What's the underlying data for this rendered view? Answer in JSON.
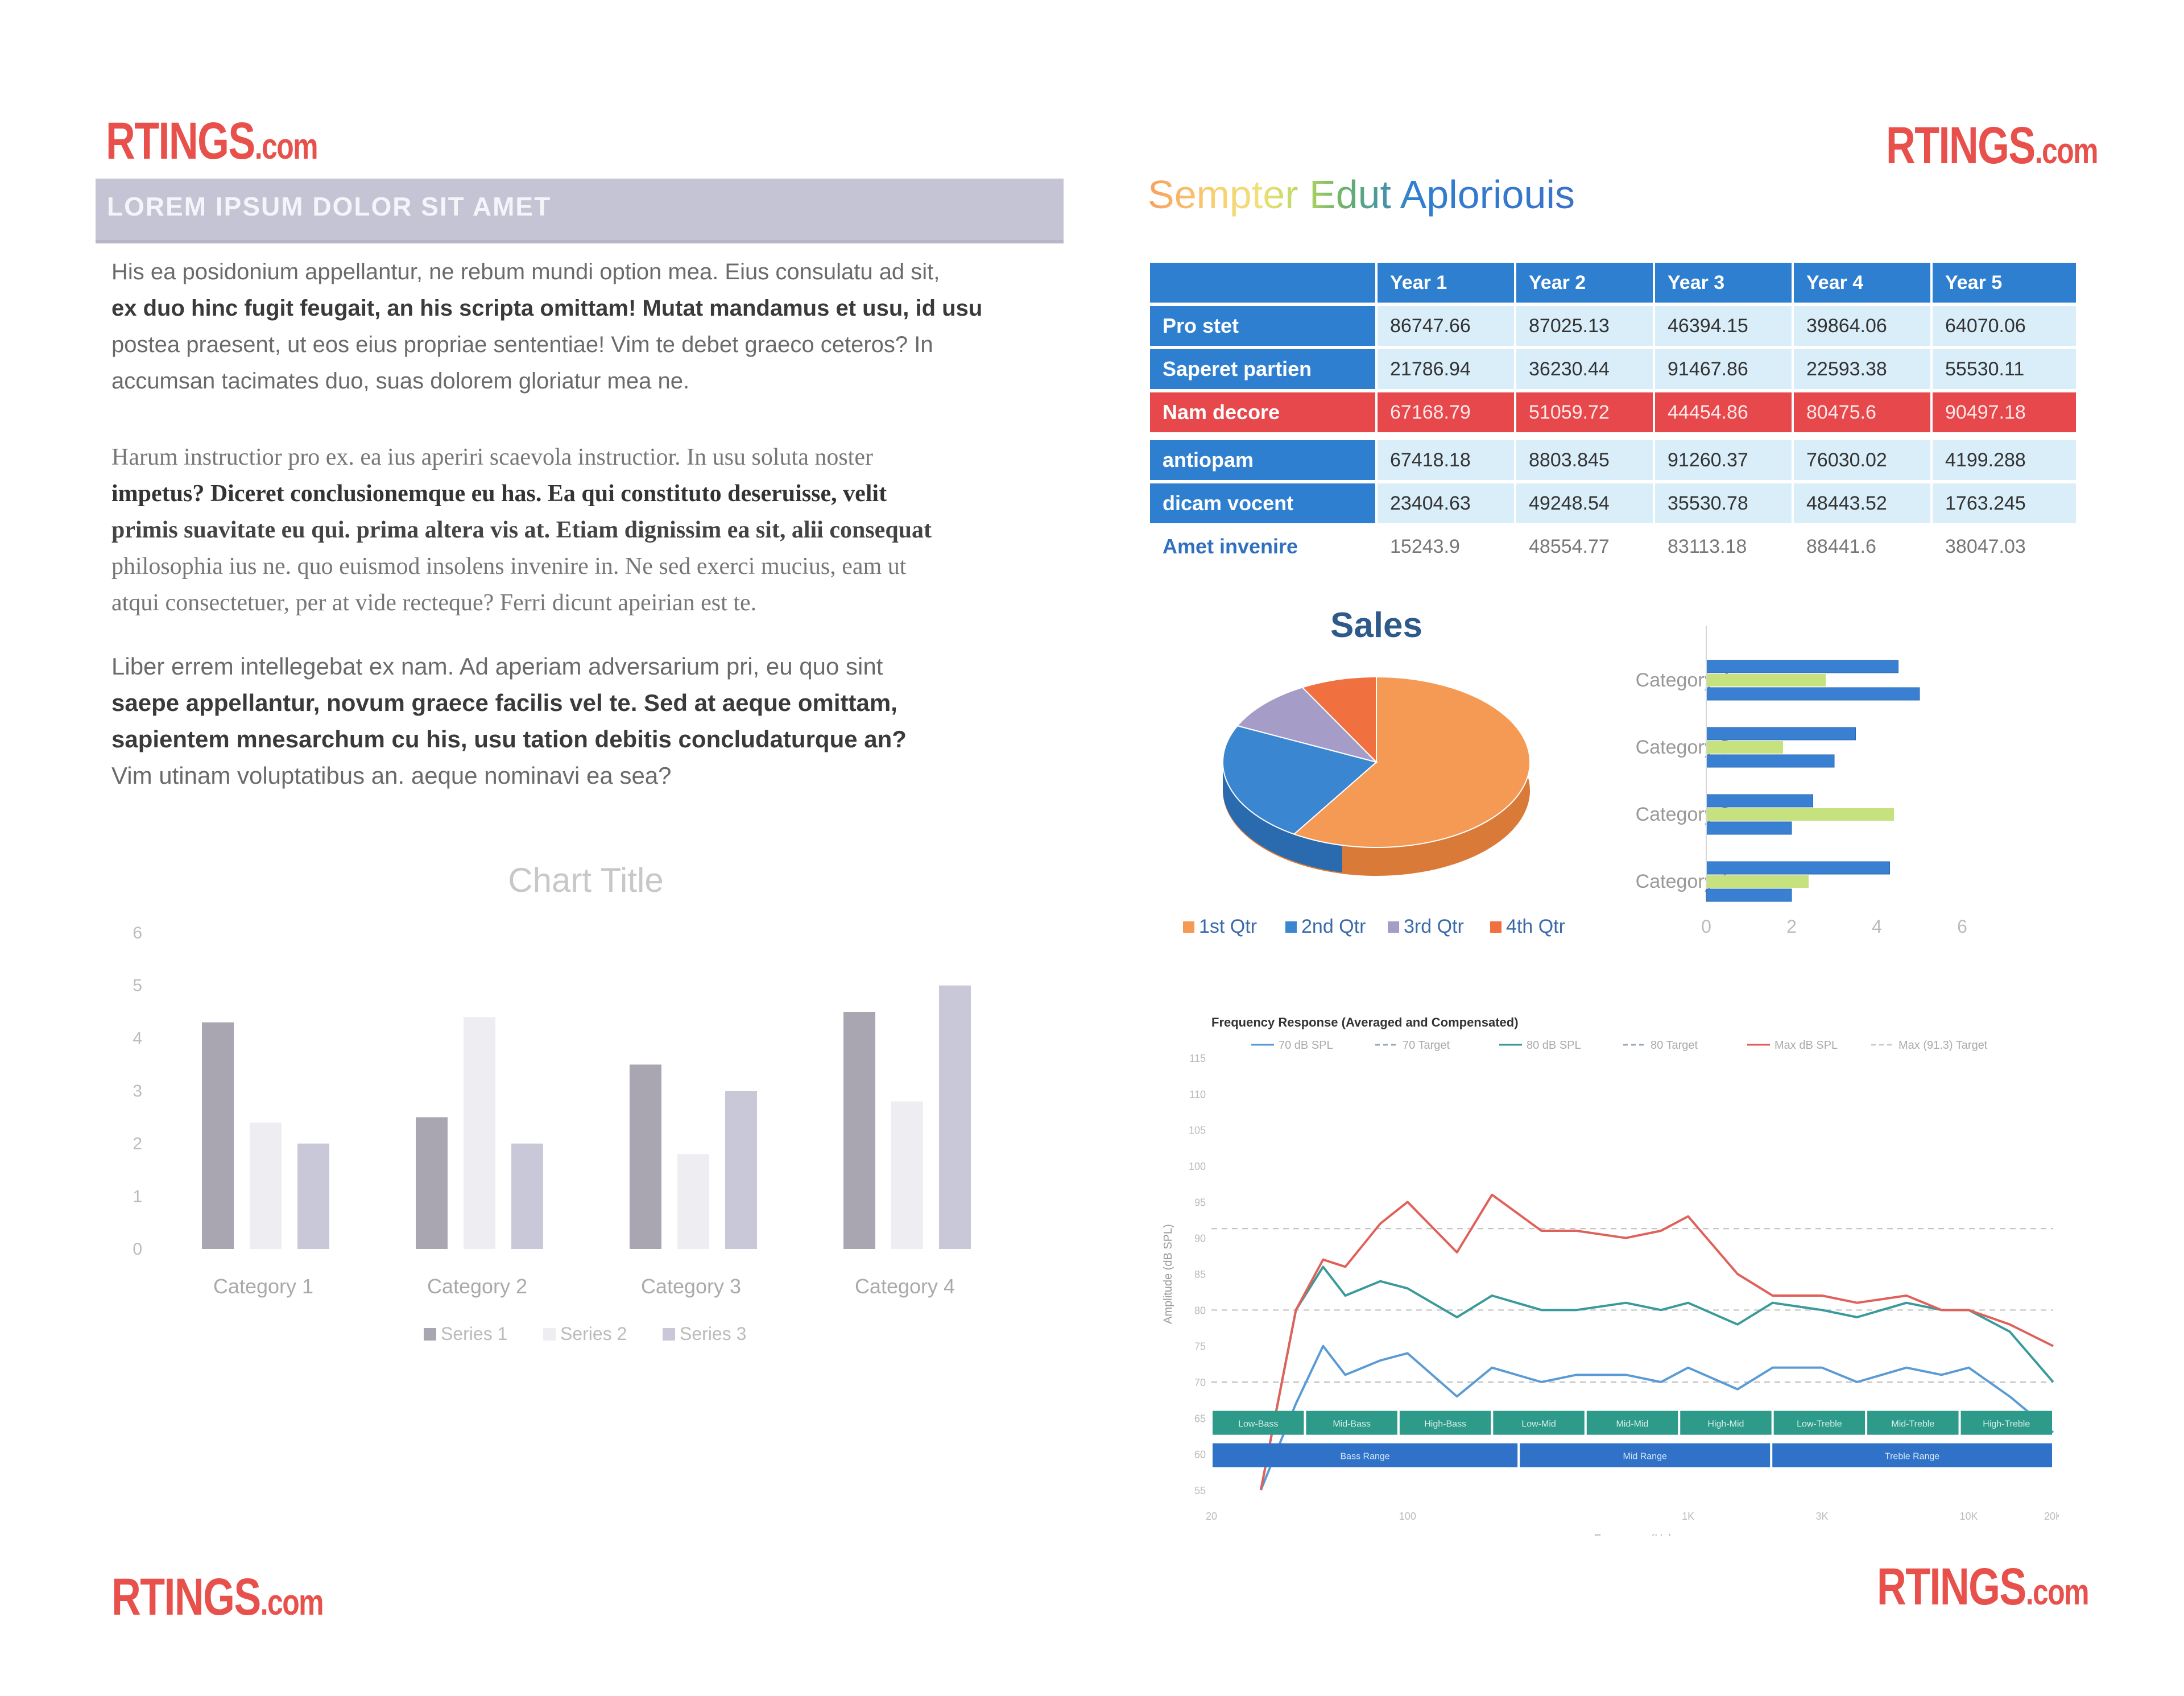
{
  "logos": {
    "top_left": {
      "main": "RTINGS",
      "suffix": ".com"
    },
    "top_right": {
      "main": "RTINGS",
      "suffix": ".com"
    },
    "bottom_left": {
      "main": "RTINGS",
      "suffix": ".com"
    },
    "bottom_right": {
      "main": "RTINGS",
      "suffix": ".com"
    }
  },
  "banner": "LOREM IPSUM DOLOR SIT AMET",
  "paragraphs": {
    "p1_lines": [
      "His ea posidonium appellantur, ne rebum mundi option mea. Eius consulatu ad sit,",
      "ex duo hinc fugit feugait, an his scripta omittam! Mutat mandamus et usu, id usu",
      "postea praesent, ut eos eius propriae sententiae! Vim te debet graeco ceteros? In",
      "accumsan tacimates duo, suas dolorem gloriatur mea ne."
    ],
    "p2_lines": [
      "Harum instructior pro ex. ea ius aperiri scaevola instructior. In usu soluta noster",
      "impetus? Diceret conclusionemque eu has. Ea qui constituto deseruisse, velit",
      "primis suavitate eu qui. prima altera vis at. Etiam dignissim ea sit, alii consequat",
      "philosophia ius ne. quo euismod insolens invenire in. Ne sed exerci mucius, eam ut",
      "atqui consectetuer, per at vide recteque? Ferri dicunt apeirian est te."
    ],
    "p3_lines": [
      "Liber errem intellegebat ex nam. Ad aperiam adversarium pri, eu quo sint",
      "saepe appellantur, novum graece facilis vel te. Sed at aeque omittam,",
      "sapientem mnesarchum cu his, usu tation debitis concludaturque an?",
      "Vim utinam voluptatibus an. aeque nominavi ea sea?"
    ]
  },
  "rainbow_title": "Sempter Edut Aploriouis",
  "table": {
    "headers": [
      "Year 1",
      "Year 2",
      "Year 3",
      "Year 4",
      "Year 5"
    ],
    "rows": [
      {
        "label": "Pro stet",
        "values": [
          "86747.66",
          "87025.13",
          "46394.15",
          "39864.06",
          "64070.06"
        ]
      },
      {
        "label": "Saperet partien",
        "values": [
          "21786.94",
          "36230.44",
          "91467.86",
          "22593.38",
          "55530.11"
        ]
      },
      {
        "label": "Nam decore",
        "values": [
          "67168.79",
          "51059.72",
          "44454.86",
          "80475.6",
          "90497.18"
        ]
      },
      {
        "label": "antiopam",
        "values": [
          "67418.18",
          "8803.845",
          "91260.37",
          "76030.02",
          "4199.288"
        ]
      },
      {
        "label": "dicam vocent",
        "values": [
          "23404.63",
          "49248.54",
          "35530.78",
          "48443.52",
          "1763.245"
        ]
      },
      {
        "label": "Amet invenire",
        "values": [
          "15243.9",
          "48554.77",
          "83113.18",
          "88441.6",
          "38047.03"
        ]
      }
    ]
  },
  "colors": {
    "logo": "#e8504c",
    "table_header": "#2f7fd0",
    "table_light": "#d9eef9",
    "table_red": "#e6484c",
    "pie_orange": "#f59a55",
    "pie_blue": "#3b86d1",
    "pie_lavender": "#a59cc8",
    "pie_red": "#f07040",
    "hbar_blue": "#3a80d2",
    "hbar_green": "#c5e27e"
  },
  "chart_data": [
    {
      "type": "bar",
      "title": "Chart Title",
      "categories": [
        "Category 1",
        "Category 2",
        "Category 3",
        "Category 4"
      ],
      "series": [
        {
          "name": "Series 1",
          "values": [
            4.3,
            2.5,
            3.5,
            4.5
          ]
        },
        {
          "name": "Series 2",
          "values": [
            2.4,
            4.4,
            1.8,
            2.8
          ]
        },
        {
          "name": "Series 3",
          "values": [
            2.0,
            2.0,
            3.0,
            5.0
          ]
        }
      ],
      "yticks": [
        "0",
        "1",
        "2",
        "3",
        "4",
        "5",
        "6"
      ],
      "ylim": [
        0,
        6
      ],
      "legend": "bottom",
      "colors": [
        "#a9a6b1",
        "#eeeef2",
        "#c9c8d8"
      ]
    },
    {
      "type": "pie",
      "title": "Sales",
      "labels": [
        "1st Qtr",
        "2nd Qtr",
        "3rd Qtr",
        "4th Qtr"
      ],
      "values": [
        59,
        23,
        10,
        8
      ],
      "legend": "bottom",
      "colors": [
        "#f59a55",
        "#3b86d1",
        "#a59cc8",
        "#f07040"
      ]
    },
    {
      "type": "bar",
      "orientation": "horizontal",
      "categories": [
        "Category 1",
        "Category 2",
        "Category 3",
        "Category 4"
      ],
      "series": [
        {
          "name": "",
          "values": [
            4.3,
            2.5,
            3.5,
            4.5
          ]
        },
        {
          "name": "",
          "values": [
            2.4,
            4.4,
            1.8,
            2.8
          ]
        },
        {
          "name": "",
          "values": [
            2.0,
            2.0,
            3.0,
            5.0
          ]
        }
      ],
      "xticks": [
        "0",
        "2",
        "4",
        "6"
      ],
      "xlim": [
        0,
        6
      ]
    },
    {
      "type": "line",
      "title": "Frequency Response (Averaged and Compensated)",
      "xlabel": "Frequency (Hz)",
      "ylabel": "Amplitude (dB SPL)",
      "x_scale": "log",
      "xticks": [
        "20",
        "100",
        "1K",
        "3K",
        "10K",
        "20K"
      ],
      "xtick_values": [
        20,
        100,
        1000,
        3000,
        10000,
        20000
      ],
      "yticks": [
        "55",
        "60",
        "65",
        "70",
        "75",
        "80",
        "85",
        "90",
        "95",
        "100",
        "105",
        "110",
        "115"
      ],
      "ylim": [
        55,
        115
      ],
      "legend_entries": [
        "70 dB SPL",
        "70 Target",
        "80 dB SPL",
        "80 Target",
        "Max dB SPL",
        "Max (91.3) Target"
      ],
      "series": [
        {
          "name": "70 dB SPL",
          "color": "#5b9bd5",
          "x": [
            30,
            40,
            50,
            60,
            80,
            100,
            150,
            200,
            300,
            400,
            600,
            800,
            1000,
            1500,
            2000,
            3000,
            4000,
            6000,
            8000,
            10000,
            14000,
            20000
          ],
          "y": [
            55,
            67,
            75,
            71,
            73,
            74,
            68,
            72,
            70,
            71,
            71,
            70,
            72,
            69,
            72,
            72,
            70,
            72,
            71,
            72,
            68,
            63
          ]
        },
        {
          "name": "80 dB SPL",
          "color": "#3a9a9a",
          "x": [
            30,
            40,
            50,
            60,
            80,
            100,
            150,
            200,
            300,
            400,
            600,
            800,
            1000,
            1500,
            2000,
            3000,
            4000,
            6000,
            8000,
            10000,
            14000,
            20000
          ],
          "y": [
            55,
            80,
            86,
            82,
            84,
            83,
            79,
            82,
            80,
            80,
            81,
            80,
            81,
            78,
            81,
            80,
            79,
            81,
            80,
            80,
            77,
            70
          ]
        },
        {
          "name": "Max dB SPL",
          "color": "#e0605a",
          "x": [
            30,
            40,
            50,
            60,
            80,
            100,
            150,
            200,
            300,
            400,
            600,
            800,
            1000,
            1500,
            2000,
            3000,
            4000,
            6000,
            8000,
            10000,
            14000,
            20000
          ],
          "y": [
            55,
            80,
            87,
            86,
            92,
            95,
            88,
            96,
            91,
            91,
            90,
            91,
            93,
            85,
            82,
            82,
            81,
            82,
            80,
            80,
            78,
            75
          ]
        }
      ],
      "targets": [
        {
          "name": "70 Target",
          "y": 70
        },
        {
          "name": "80 Target",
          "y": 80
        },
        {
          "name": "Max (91.3) Target",
          "y": 91.3
        }
      ],
      "bands_top": [
        "Low-Bass",
        "Mid-Bass",
        "High-Bass",
        "Low-Mid",
        "Mid-Mid",
        "High-Mid",
        "Low-Treble",
        "Mid-Treble",
        "High-Treble"
      ],
      "bands_bottom": [
        "Bass Range",
        "Mid Range",
        "Treble Range"
      ]
    }
  ]
}
